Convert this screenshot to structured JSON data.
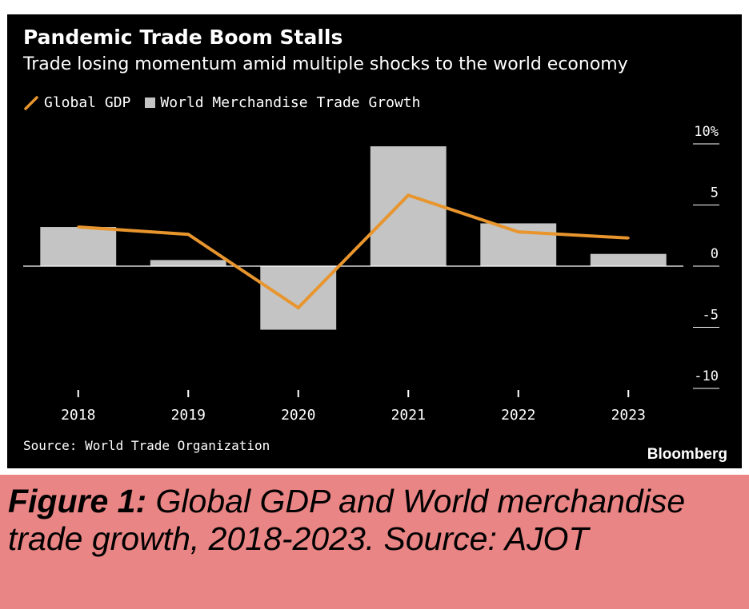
{
  "chart_data": {
    "type": "bar",
    "title": "Pandemic Trade Boom Stalls",
    "subtitle": "Trade losing momentum amid multiple shocks to the world economy",
    "categories": [
      "2018",
      "2019",
      "2020",
      "2021",
      "2022",
      "2023"
    ],
    "series": [
      {
        "name": "World Merchandise Trade Growth",
        "type": "bar",
        "color": "#c4c4c4",
        "values": [
          3.2,
          0.5,
          -5.2,
          9.8,
          3.5,
          1.0
        ]
      },
      {
        "name": "Global GDP",
        "type": "line",
        "color": "#e8952d",
        "values": [
          3.2,
          2.6,
          -3.4,
          5.8,
          2.8,
          2.3
        ]
      }
    ],
    "ylim": [
      -10,
      10
    ],
    "yticks": [
      10,
      5,
      0,
      -5,
      -10
    ],
    "ytick_labels": [
      "10%",
      "5",
      "0",
      "-5",
      "-10"
    ],
    "xlabel": "",
    "ylabel": "",
    "legend_position": "top-left",
    "grid": false
  },
  "source": "Source: World Trade Organization",
  "brand": "Bloomberg",
  "caption": {
    "label": "Figure 1:",
    "text": " Global GDP and World merchandise trade growth, 2018-2023. Source: AJOT"
  }
}
